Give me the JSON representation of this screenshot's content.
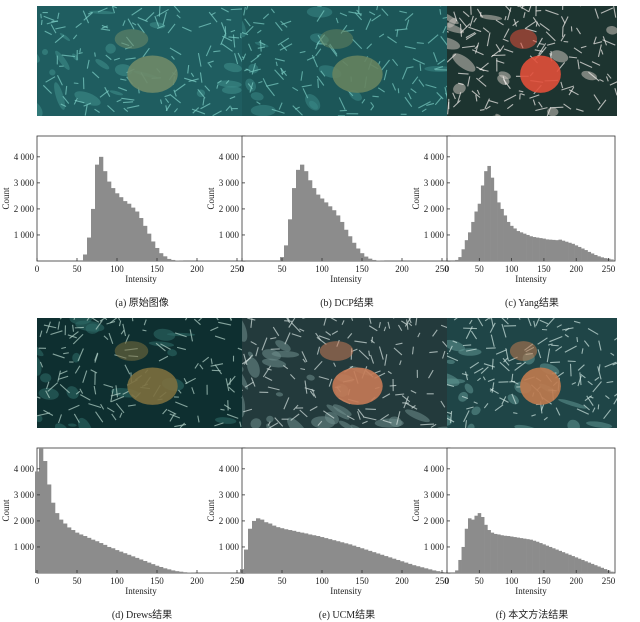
{
  "panels": [
    {
      "id": "a",
      "caption": "(a) 原始图像",
      "palette": {
        "bg": "#1f5d60",
        "mid": "#3f8f8c",
        "hi": "#7fd1c8",
        "coral": "#6f8a68"
      }
    },
    {
      "id": "b",
      "caption": "(b) DCP结果",
      "palette": {
        "bg": "#1c5658",
        "mid": "#3b8986",
        "hi": "#79cbc2",
        "coral": "#66835f"
      }
    },
    {
      "id": "c",
      "caption": "(c) Yang结果",
      "palette": {
        "bg": "#1d3430",
        "mid": "#c9c2bc",
        "hi": "#f5f1ee",
        "coral": "#e24f3a"
      }
    },
    {
      "id": "d",
      "caption": "(d) Drews结果",
      "palette": {
        "bg": "#0e2f30",
        "mid": "#2f6e6a",
        "hi": "#b7d6cc",
        "coral": "#7c6f3e"
      }
    },
    {
      "id": "e",
      "caption": "(e) UCM结果",
      "palette": {
        "bg": "#233a3c",
        "mid": "#6f8e8d",
        "hi": "#d6e3e0",
        "coral": "#c77a55"
      }
    },
    {
      "id": "f",
      "caption": "(f) 本文方法结果",
      "palette": {
        "bg": "#1f4547",
        "mid": "#5f9592",
        "hi": "#cfe6e1",
        "coral": "#c07a4e"
      }
    }
  ],
  "chart_data": [
    {
      "type": "bar",
      "panel": "a",
      "xlabel": "Intensity",
      "ylabel": "Count",
      "xlim": [
        0,
        255
      ],
      "ylim": [
        0,
        4800
      ],
      "xticks": [
        0,
        50,
        100,
        150,
        200,
        250
      ],
      "yticks": [
        1000,
        2000,
        3000,
        4000
      ],
      "ytick_labels": [
        "1 000",
        "2 000",
        "3 000",
        "4 000"
      ],
      "x": [
        55,
        60,
        65,
        70,
        75,
        80,
        85,
        90,
        95,
        100,
        105,
        110,
        115,
        120,
        125,
        130,
        135,
        140,
        145,
        150,
        155,
        160,
        165,
        170,
        175,
        180,
        185
      ],
      "values": [
        0,
        250,
        900,
        2000,
        3700,
        4000,
        3450,
        3050,
        2800,
        2600,
        2450,
        2300,
        2200,
        2050,
        1900,
        1650,
        1350,
        1050,
        750,
        500,
        300,
        180,
        80,
        40,
        20,
        10,
        0
      ]
    },
    {
      "type": "bar",
      "panel": "b",
      "xlabel": "Intensity",
      "ylabel": "Count",
      "xlim": [
        0,
        255
      ],
      "ylim": [
        0,
        4800
      ],
      "xticks": [
        0,
        50,
        100,
        150,
        200,
        250
      ],
      "yticks": [
        1000,
        2000,
        3000,
        4000
      ],
      "ytick_labels": [
        "1 000",
        "2 000",
        "3 000",
        "4 000"
      ],
      "x": [
        45,
        50,
        55,
        60,
        65,
        70,
        75,
        80,
        85,
        90,
        95,
        100,
        105,
        110,
        115,
        120,
        125,
        130,
        135,
        140,
        145,
        150,
        155,
        160,
        165,
        170,
        175,
        180
      ],
      "values": [
        0,
        150,
        600,
        1600,
        2800,
        3500,
        3700,
        3450,
        3100,
        2800,
        2550,
        2400,
        2250,
        2100,
        1950,
        1750,
        1500,
        1200,
        950,
        700,
        480,
        300,
        170,
        90,
        40,
        20,
        10,
        0
      ]
    },
    {
      "type": "bar",
      "panel": "c",
      "xlabel": "Intensity",
      "ylabel": "Count",
      "xlim": [
        0,
        255
      ],
      "ylim": [
        0,
        4800
      ],
      "xticks": [
        0,
        50,
        100,
        150,
        200,
        250
      ],
      "yticks": [
        1000,
        2000,
        3000,
        4000
      ],
      "ytick_labels": [
        "1 000",
        "2 000",
        "3 000",
        "4 000"
      ],
      "x": [
        10,
        15,
        20,
        25,
        30,
        35,
        40,
        45,
        50,
        55,
        60,
        65,
        70,
        75,
        80,
        85,
        90,
        95,
        100,
        105,
        110,
        115,
        120,
        125,
        130,
        135,
        140,
        145,
        150,
        155,
        160,
        165,
        170,
        175,
        180,
        185,
        190,
        195,
        200,
        205,
        210,
        215,
        220,
        225,
        230,
        235,
        240,
        245,
        250,
        255
      ],
      "values": [
        0,
        40,
        150,
        450,
        800,
        1100,
        1500,
        1900,
        2200,
        2900,
        3450,
        3650,
        3200,
        2700,
        2250,
        2000,
        1750,
        1500,
        1350,
        1250,
        1150,
        1100,
        1050,
        1000,
        950,
        920,
        900,
        880,
        860,
        830,
        820,
        810,
        800,
        820,
        780,
        740,
        700,
        660,
        600,
        540,
        480,
        420,
        350,
        290,
        230,
        180,
        140,
        110,
        90,
        60
      ]
    },
    {
      "type": "bar",
      "panel": "d",
      "xlabel": "Intensity",
      "ylabel": "Count",
      "xlim": [
        0,
        255
      ],
      "ylim": [
        0,
        4800
      ],
      "xticks": [
        0,
        50,
        100,
        150,
        200,
        250
      ],
      "yticks": [
        1000,
        2000,
        3000,
        4000
      ],
      "ytick_labels": [
        "1 000",
        "2 000",
        "3 000",
        "4 000"
      ],
      "x": [
        0,
        5,
        10,
        15,
        20,
        25,
        30,
        35,
        40,
        45,
        50,
        55,
        60,
        65,
        70,
        75,
        80,
        85,
        90,
        95,
        100,
        105,
        110,
        115,
        120,
        125,
        130,
        135,
        140,
        145,
        150,
        155,
        160,
        165,
        170,
        175,
        180,
        185,
        190,
        195,
        200
      ],
      "values": [
        3900,
        4800,
        4300,
        3400,
        2700,
        2300,
        2050,
        1900,
        1750,
        1650,
        1550,
        1480,
        1420,
        1350,
        1280,
        1220,
        1150,
        1080,
        1000,
        950,
        880,
        820,
        760,
        700,
        640,
        580,
        520,
        460,
        400,
        340,
        280,
        230,
        180,
        140,
        100,
        70,
        50,
        30,
        20,
        10,
        0
      ]
    },
    {
      "type": "bar",
      "panel": "e",
      "xlabel": "Intensity",
      "ylabel": "Count",
      "xlim": [
        0,
        255
      ],
      "ylim": [
        0,
        4800
      ],
      "xticks": [
        0,
        50,
        100,
        150,
        200,
        250
      ],
      "yticks": [
        1000,
        2000,
        3000,
        4000
      ],
      "ytick_labels": [
        "1 000",
        "2 000",
        "3 000",
        "4 000"
      ],
      "x": [
        0,
        5,
        10,
        15,
        20,
        25,
        30,
        35,
        40,
        45,
        50,
        55,
        60,
        65,
        70,
        75,
        80,
        85,
        90,
        95,
        100,
        105,
        110,
        115,
        120,
        125,
        130,
        135,
        140,
        145,
        150,
        155,
        160,
        165,
        170,
        175,
        180,
        185,
        190,
        195,
        200,
        205,
        210,
        215,
        220,
        225,
        230,
        235,
        240,
        245,
        250,
        255
      ],
      "values": [
        150,
        900,
        1700,
        2000,
        2100,
        2050,
        1950,
        1900,
        1820,
        1760,
        1720,
        1680,
        1650,
        1620,
        1580,
        1550,
        1520,
        1480,
        1450,
        1420,
        1380,
        1340,
        1300,
        1260,
        1220,
        1180,
        1140,
        1100,
        1050,
        1000,
        950,
        900,
        850,
        800,
        750,
        700,
        650,
        600,
        550,
        500,
        450,
        400,
        350,
        300,
        260,
        220,
        180,
        140,
        100,
        70,
        40,
        0
      ]
    },
    {
      "type": "bar",
      "panel": "f",
      "xlabel": "Intensity",
      "ylabel": "Count",
      "xlim": [
        0,
        255
      ],
      "ylim": [
        0,
        4800
      ],
      "xticks": [
        0,
        50,
        100,
        150,
        200,
        250
      ],
      "yticks": [
        1000,
        2000,
        3000,
        4000
      ],
      "ytick_labels": [
        "1 000",
        "2 000",
        "3 000",
        "4 000"
      ],
      "x": [
        10,
        15,
        20,
        25,
        30,
        35,
        40,
        45,
        50,
        55,
        60,
        65,
        70,
        75,
        80,
        85,
        90,
        95,
        100,
        105,
        110,
        115,
        120,
        125,
        130,
        135,
        140,
        145,
        150,
        155,
        160,
        165,
        170,
        175,
        180,
        185,
        190,
        195,
        200,
        205,
        210,
        215,
        220,
        225,
        230,
        235,
        240,
        245,
        250,
        255
      ],
      "values": [
        0,
        100,
        500,
        1000,
        1700,
        2100,
        2050,
        2200,
        2300,
        2150,
        1850,
        1650,
        1550,
        1500,
        1480,
        1450,
        1430,
        1420,
        1400,
        1380,
        1360,
        1340,
        1320,
        1300,
        1280,
        1240,
        1200,
        1150,
        1100,
        1050,
        1000,
        950,
        900,
        850,
        800,
        750,
        700,
        650,
        600,
        550,
        500,
        450,
        400,
        350,
        300,
        250,
        200,
        150,
        100,
        50
      ]
    }
  ]
}
